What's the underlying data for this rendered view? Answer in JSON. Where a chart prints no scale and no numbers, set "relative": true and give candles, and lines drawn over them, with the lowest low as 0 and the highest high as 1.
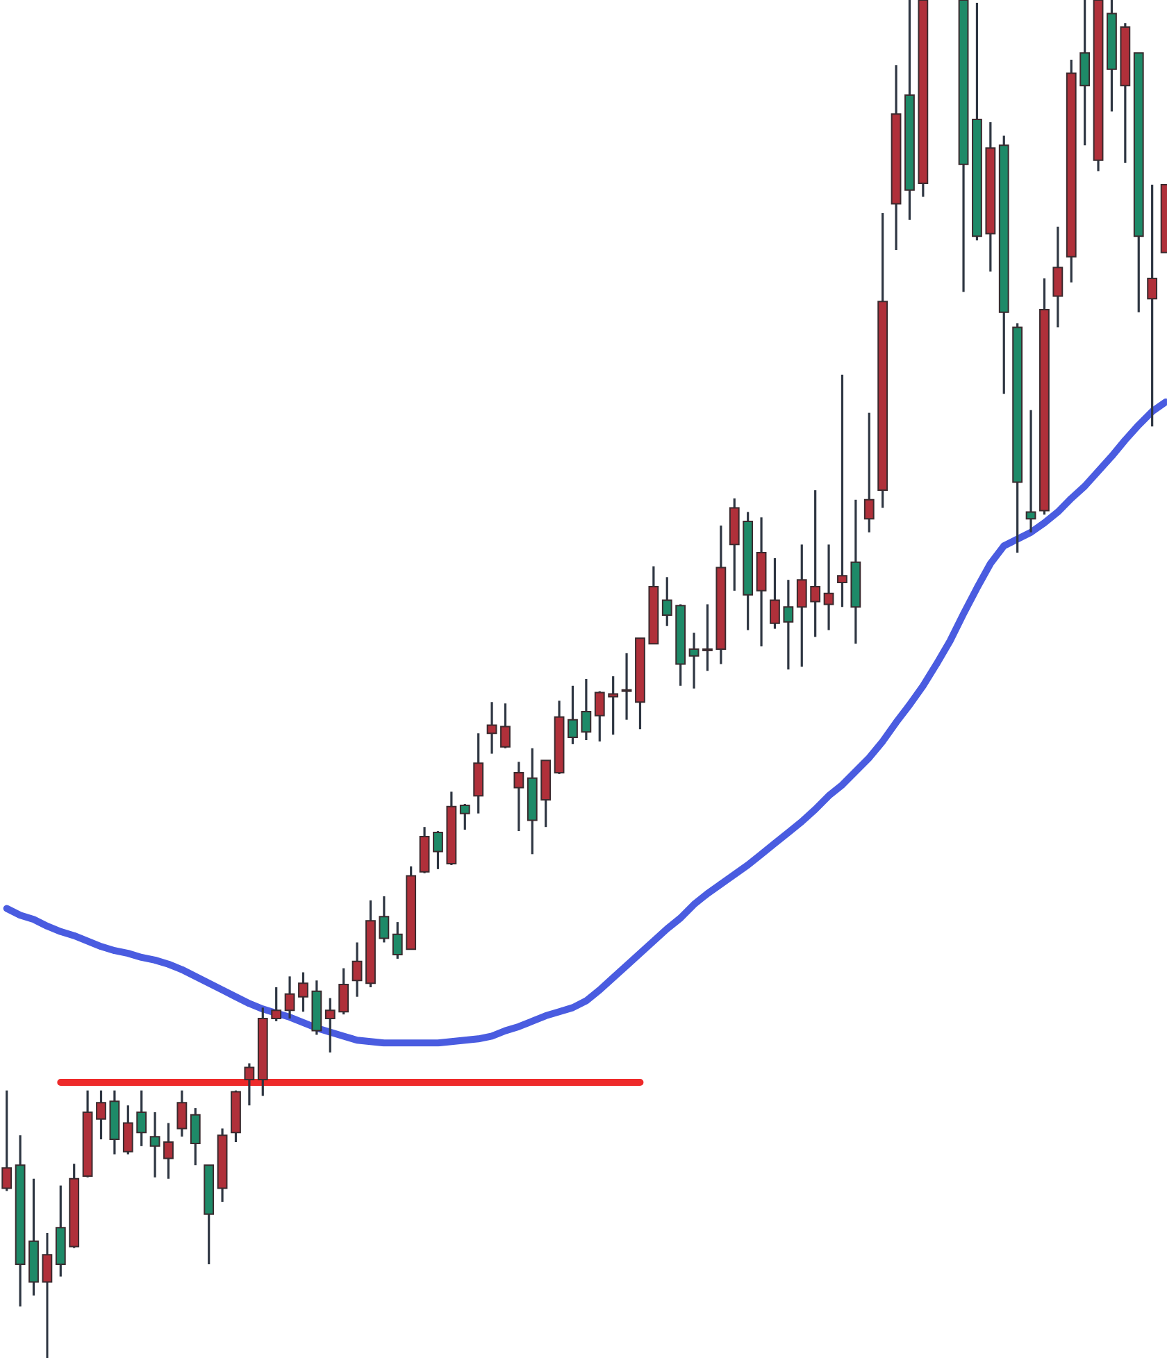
{
  "chart_data": {
    "type": "candlestick",
    "relative": true,
    "categories": [
      null,
      null,
      null,
      null,
      null,
      null,
      null,
      null,
      null,
      null,
      null,
      null,
      null,
      null,
      null,
      null,
      null,
      null,
      null,
      null,
      null,
      null,
      null,
      null,
      null,
      null,
      null,
      null,
      null,
      null,
      null,
      null,
      null,
      null,
      null,
      null,
      null,
      null,
      null,
      null,
      null,
      null,
      null,
      null,
      null,
      null,
      null,
      null,
      null,
      null,
      null,
      null,
      null,
      null,
      null,
      null,
      null,
      null,
      null,
      null,
      null,
      null,
      null,
      null,
      null,
      null,
      null,
      null,
      null,
      null,
      null,
      null,
      null,
      null,
      null,
      null,
      null,
      null,
      null,
      null,
      null,
      null,
      null,
      null,
      null,
      null,
      null
    ],
    "ohlc": [
      [
        0.125,
        0.197,
        0.123,
        0.14
      ],
      [
        0.142,
        0.164,
        0.038,
        0.069
      ],
      [
        0.086,
        0.132,
        0.046,
        0.056
      ],
      [
        0.056,
        0.092,
        0,
        0.076
      ],
      [
        0.096,
        0.127,
        0.06,
        0.069
      ],
      [
        0.082,
        0.143,
        0.081,
        0.132
      ],
      [
        0.134,
        0.197,
        0.133,
        0.181
      ],
      [
        0.176,
        0.197,
        0.161,
        0.188
      ],
      [
        0.189,
        0.197,
        0.15,
        0.161
      ],
      [
        0.152,
        0.186,
        0.15,
        0.173
      ],
      [
        0.181,
        0.197,
        0.156,
        0.166
      ],
      [
        0.163,
        0.181,
        0.133,
        0.156
      ],
      [
        0.147,
        0.173,
        0.132,
        0.159
      ],
      [
        0.169,
        0.197,
        0.163,
        0.188
      ],
      [
        0.179,
        0.184,
        0.142,
        0.158
      ],
      [
        0.142,
        0.142,
        0.069,
        0.106
      ],
      [
        0.125,
        0.169,
        0.115,
        0.164
      ],
      [
        0.166,
        0.197,
        0.159,
        0.196
      ],
      [
        0.205,
        0.217,
        0.186,
        0.214
      ],
      [
        0.205,
        0.258,
        0.193,
        0.25
      ],
      [
        0.25,
        0.273,
        0.248,
        0.256
      ],
      [
        0.256,
        0.281,
        0.25,
        0.268
      ],
      [
        0.266,
        0.284,
        0.255,
        0.276
      ],
      [
        0.27,
        0.278,
        0.238,
        0.241
      ],
      [
        0.25,
        0.265,
        0.225,
        0.256
      ],
      [
        0.255,
        0.287,
        0.253,
        0.275
      ],
      [
        0.278,
        0.306,
        0.266,
        0.292
      ],
      [
        0.276,
        0.337,
        0.273,
        0.322
      ],
      [
        0.325,
        0.34,
        0.306,
        0.309
      ],
      [
        0.312,
        0.321,
        0.294,
        0.297
      ],
      [
        0.301,
        0.362,
        0.301,
        0.355
      ],
      [
        0.358,
        0.391,
        0.357,
        0.384
      ],
      [
        0.387,
        0.388,
        0.36,
        0.373
      ],
      [
        0.364,
        0.417,
        0.363,
        0.406
      ],
      [
        0.407,
        0.408,
        0.389,
        0.401
      ],
      [
        0.414,
        0.46,
        0.401,
        0.438
      ],
      [
        0.46,
        0.483,
        0.445,
        0.466
      ],
      [
        0.45,
        0.482,
        0.449,
        0.465
      ],
      [
        0.42,
        0.439,
        0.388,
        0.431
      ],
      [
        0.427,
        0.449,
        0.371,
        0.396
      ],
      [
        0.411,
        0.44,
        0.391,
        0.44
      ],
      [
        0.431,
        0.484,
        0.43,
        0.472
      ],
      [
        0.47,
        0.495,
        0.452,
        0.457
      ],
      [
        0.476,
        0.5,
        0.455,
        0.461
      ],
      [
        0.473,
        0.491,
        0.454,
        0.49
      ],
      [
        0.487,
        0.502,
        0.459,
        0.489
      ],
      [
        0.491,
        0.519,
        0.47,
        0.492
      ],
      [
        0.483,
        0.53,
        0.463,
        0.53
      ],
      [
        0.526,
        0.583,
        0.526,
        0.568
      ],
      [
        0.558,
        0.575,
        0.539,
        0.547
      ],
      [
        0.554,
        0.555,
        0.495,
        0.511
      ],
      [
        0.522,
        0.534,
        0.493,
        0.517
      ],
      [
        0.521,
        0.555,
        0.506,
        0.522
      ],
      [
        0.522,
        0.613,
        0.511,
        0.582
      ],
      [
        0.599,
        0.633,
        0.565,
        0.626
      ],
      [
        0.616,
        0.623,
        0.536,
        0.562
      ],
      [
        0.565,
        0.619,
        0.524,
        0.593
      ],
      [
        0.541,
        0.589,
        0.537,
        0.558
      ],
      [
        0.553,
        0.573,
        0.507,
        0.542
      ],
      [
        0.553,
        0.599,
        0.509,
        0.573
      ],
      [
        0.557,
        0.639,
        0.531,
        0.568
      ],
      [
        0.555,
        0.599,
        0.536,
        0.563
      ],
      [
        0.571,
        0.724,
        0.553,
        0.576
      ],
      [
        0.586,
        0.632,
        0.526,
        0.553
      ],
      [
        0.618,
        0.696,
        0.608,
        0.632
      ],
      [
        0.639,
        0.843,
        0.626,
        0.778
      ],
      [
        0.85,
        0.952,
        0.816,
        0.916
      ],
      [
        0.93,
        1,
        0.838,
        0.86
      ],
      [
        0.865,
        1,
        0.855,
        1
      ],
      null,
      null,
      [
        1,
        1,
        0.785,
        0.879
      ],
      [
        0.912,
        0.998,
        0.823,
        0.826
      ],
      [
        0.828,
        0.91,
        0.8,
        0.891
      ],
      [
        0.893,
        0.9,
        0.71,
        0.77
      ],
      [
        0.759,
        0.762,
        0.593,
        0.645
      ],
      [
        0.623,
        0.698,
        0.608,
        0.618
      ],
      [
        0.624,
        0.795,
        0.621,
        0.772
      ],
      [
        0.782,
        0.833,
        0.759,
        0.803
      ],
      [
        0.811,
        0.956,
        0.792,
        0.946
      ],
      [
        0.961,
        1,
        0.893,
        0.937
      ],
      [
        0.882,
        1,
        0.874,
        1
      ],
      [
        0.99,
        1,
        0.918,
        0.949
      ],
      [
        0.937,
        0.983,
        0.88,
        0.98
      ],
      [
        0.961,
        0.961,
        0.77,
        0.826
      ],
      [
        0.78,
        0.864,
        0.686,
        0.795
      ],
      [
        0.814,
        0.864,
        0.814,
        0.864
      ]
    ],
    "colors": [
      "#b0303a",
      "#1e8a68",
      "#1e8a68",
      "#b0303a",
      "#1e8a68",
      "#b0303a",
      "#b0303a",
      "#b0303a",
      "#1e8a68",
      "#b0303a",
      "#1e8a68",
      "#1e8a68",
      "#b0303a",
      "#b0303a",
      "#1e8a68",
      "#1e8a68",
      "#b0303a",
      "#b0303a",
      "#b0303a",
      "#b0303a",
      "#b0303a",
      "#b0303a",
      "#b0303a",
      "#1e8a68",
      "#b0303a",
      "#b0303a",
      "#b0303a",
      "#b0303a",
      "#1e8a68",
      "#1e8a68",
      "#b0303a",
      "#b0303a",
      "#1e8a68",
      "#b0303a",
      "#1e8a68",
      "#b0303a",
      "#b0303a",
      "#b0303a",
      "#b0303a",
      "#1e8a68",
      "#b0303a",
      "#b0303a",
      "#1e8a68",
      "#1e8a68",
      "#b0303a",
      "#b0303a",
      "#b0303a",
      "#b0303a",
      "#b0303a",
      "#1e8a68",
      "#1e8a68",
      "#1e8a68",
      "#b0303a",
      "#b0303a",
      "#b0303a",
      "#1e8a68",
      "#b0303a",
      "#b0303a",
      "#1e8a68",
      "#b0303a",
      "#b0303a",
      "#b0303a",
      "#b0303a",
      "#1e8a68",
      "#b0303a",
      "#b0303a",
      "#b0303a",
      "#1e8a68",
      "#b0303a",
      null,
      null,
      "#1e8a68",
      "#1e8a68",
      "#b0303a",
      "#1e8a68",
      "#1e8a68",
      "#1e8a68",
      "#b0303a",
      "#b0303a",
      "#b0303a",
      "#1e8a68",
      "#b0303a",
      "#1e8a68",
      "#b0303a",
      "#1e8a68",
      "#b0303a",
      "#b0303a"
    ],
    "series": [
      {
        "type": "line",
        "color": "#4a5ce0",
        "values": [
          0.331,
          0.326,
          0.323,
          0.318,
          0.314,
          0.311,
          0.307,
          0.303,
          0.3,
          0.298,
          0.295,
          0.293,
          0.29,
          0.286,
          0.281,
          0.276,
          0.271,
          0.266,
          0.261,
          0.257,
          0.254,
          0.251,
          0.247,
          0.243,
          0.24,
          0.237,
          0.234,
          0.233,
          0.232,
          0.232,
          0.232,
          0.232,
          0.232,
          0.233,
          0.234,
          0.235,
          0.237,
          0.241,
          0.244,
          0.248,
          0.252,
          0.255,
          0.258,
          0.263,
          0.271,
          0.28,
          0.289,
          0.298,
          0.307,
          0.316,
          0.324,
          0.334,
          0.342,
          0.349,
          0.356,
          0.363,
          0.371,
          0.379,
          0.387,
          0.395,
          0.404,
          0.414,
          0.422,
          0.432,
          0.442,
          0.454,
          0.468,
          0.481,
          0.495,
          0.511,
          0.528,
          0.548,
          0.567,
          0.585,
          0.598,
          0.603,
          0.608,
          0.615,
          0.623,
          0.633,
          0.642,
          0.653,
          0.664,
          0.676,
          0.687,
          0.697,
          0.704
        ]
      },
      {
        "type": "line",
        "color": "#ee2a2a",
        "values": [
          null,
          null,
          null,
          null,
          0.203,
          0.203,
          0.203,
          0.203,
          0.203,
          0.203,
          0.203,
          0.203,
          0.203,
          0.203,
          0.203,
          0.203,
          0.203,
          0.203,
          0.203,
          0.203,
          0.203,
          0.203,
          0.203,
          0.203,
          0.203,
          0.203,
          0.203,
          0.203,
          0.203,
          0.203,
          0.203,
          0.203,
          0.203,
          0.203,
          0.203,
          0.203,
          0.203,
          0.203,
          0.203,
          0.203,
          0.203,
          0.203,
          0.203,
          0.203,
          0.203,
          0.203,
          0.203,
          0.203,
          null,
          null,
          null,
          null,
          null,
          null,
          null,
          null,
          null,
          null,
          null,
          null,
          null,
          null,
          null,
          null,
          null,
          null,
          null,
          null,
          null,
          null,
          null,
          null,
          null,
          null,
          null,
          null,
          null,
          null,
          null,
          null,
          null,
          null,
          null,
          null,
          null,
          null,
          null
        ]
      }
    ]
  }
}
